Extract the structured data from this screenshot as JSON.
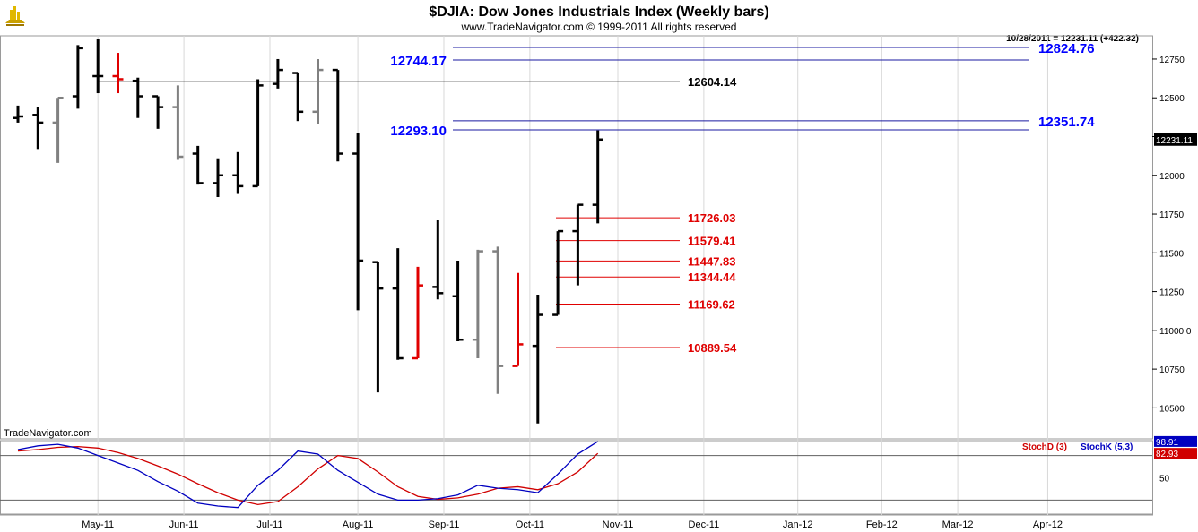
{
  "header": {
    "title": "$DJIA:  Dow Jones Industrials Index  (Weekly bars)",
    "copyright": "www.TradeNavigator.com © 1999-2011 All rights reserved",
    "last_info": "10/28/2011 = 12231.11 (+422.32)",
    "watermark": "TradeNavigator.com"
  },
  "colors": {
    "up_bar": "#000000",
    "gray_bar": "#808080",
    "red_bar": "#e00000",
    "blue_level": "#0000ff",
    "blue_line": "#1a1aa0",
    "red_level": "#e00000",
    "black_level": "#000000",
    "stoch_d": "#d00000",
    "stoch_k": "#0000c0"
  },
  "chart_data": [
    {
      "type": "ohlc",
      "ylim": [
        10300,
        12900
      ],
      "yticks": [
        10500,
        10750,
        11000,
        11250,
        11500,
        11750,
        12000,
        12250,
        12500,
        12750
      ],
      "ytick_labels": [
        "10500",
        "10750",
        "11000.0",
        "11250",
        "11500",
        "11750",
        "12000",
        "12250",
        "12500",
        "12750"
      ],
      "current_price_label": "12231.11",
      "x_labels": [
        "May-11",
        "Jun-11",
        "Jul-11",
        "Aug-11",
        "Sep-11",
        "Oct-11",
        "Nov-11",
        "Dec-11",
        "Jan-12",
        "Feb-12",
        "Mar-12",
        "Apr-12"
      ],
      "x_label_weeks": [
        4,
        8.3,
        12.6,
        17,
        21.3,
        25.6,
        30,
        34.3,
        39,
        43.2,
        47,
        51.5
      ],
      "bars": [
        {
          "w": 0,
          "o": 12370,
          "h": 12450,
          "l": 12340,
          "c": 12380,
          "color": "black"
        },
        {
          "w": 1,
          "o": 12390,
          "h": 12440,
          "l": 12170,
          "c": 12340,
          "color": "black"
        },
        {
          "w": 2,
          "o": 12340,
          "h": 12500,
          "l": 12080,
          "c": 12500,
          "color": "gray"
        },
        {
          "w": 3,
          "o": 12510,
          "h": 12840,
          "l": 12430,
          "c": 12820,
          "color": "black"
        },
        {
          "w": 4,
          "o": 12640,
          "h": 12880,
          "l": 12530,
          "c": 12640,
          "color": "black"
        },
        {
          "w": 5,
          "o": 12640,
          "h": 12790,
          "l": 12530,
          "c": 12620,
          "color": "red"
        },
        {
          "w": 6,
          "o": 12610,
          "h": 12630,
          "l": 12370,
          "c": 12510,
          "color": "black"
        },
        {
          "w": 7,
          "o": 12510,
          "h": 12510,
          "l": 12300,
          "c": 12440,
          "color": "black"
        },
        {
          "w": 8,
          "o": 12440,
          "h": 12580,
          "l": 12100,
          "c": 12120,
          "color": "gray"
        },
        {
          "w": 9,
          "o": 12140,
          "h": 12190,
          "l": 11940,
          "c": 11950,
          "color": "black"
        },
        {
          "w": 10,
          "o": 11950,
          "h": 12110,
          "l": 11860,
          "c": 12000,
          "color": "black"
        },
        {
          "w": 11,
          "o": 12000,
          "h": 12150,
          "l": 11880,
          "c": 11930,
          "color": "black"
        },
        {
          "w": 12,
          "o": 11930,
          "h": 12620,
          "l": 11930,
          "c": 12580,
          "color": "black"
        },
        {
          "w": 13,
          "o": 12590,
          "h": 12750,
          "l": 12560,
          "c": 12680,
          "color": "black"
        },
        {
          "w": 14,
          "o": 12660,
          "h": 12660,
          "l": 12350,
          "c": 12410,
          "color": "black"
        },
        {
          "w": 15,
          "o": 12410,
          "h": 12750,
          "l": 12330,
          "c": 12680,
          "color": "gray"
        },
        {
          "w": 16,
          "o": 12680,
          "h": 12680,
          "l": 12090,
          "c": 12140,
          "color": "black"
        },
        {
          "w": 17,
          "o": 12140,
          "h": 12270,
          "l": 11130,
          "c": 11450,
          "color": "black"
        },
        {
          "w": 18,
          "o": 11440,
          "h": 11440,
          "l": 10600,
          "c": 11270,
          "color": "black"
        },
        {
          "w": 19,
          "o": 11270,
          "h": 11530,
          "l": 10810,
          "c": 10820,
          "color": "black"
        },
        {
          "w": 20,
          "o": 10820,
          "h": 11410,
          "l": 10820,
          "c": 11290,
          "color": "red"
        },
        {
          "w": 21,
          "o": 11280,
          "h": 11710,
          "l": 11200,
          "c": 11240,
          "color": "black"
        },
        {
          "w": 22,
          "o": 11220,
          "h": 11450,
          "l": 10930,
          "c": 10940,
          "color": "black"
        },
        {
          "w": 23,
          "o": 10940,
          "h": 11520,
          "l": 10820,
          "c": 11510,
          "color": "gray"
        },
        {
          "w": 24,
          "o": 11510,
          "h": 11540,
          "l": 10590,
          "c": 10770,
          "color": "gray"
        },
        {
          "w": 25,
          "o": 10770,
          "h": 11370,
          "l": 10770,
          "c": 10910,
          "color": "red"
        },
        {
          "w": 26,
          "o": 10900,
          "h": 11230,
          "l": 10400,
          "c": 11100,
          "color": "black"
        },
        {
          "w": 27,
          "o": 11100,
          "h": 11640,
          "l": 11100,
          "c": 11640,
          "color": "black"
        },
        {
          "w": 28,
          "o": 11640,
          "h": 11810,
          "l": 11290,
          "c": 11810,
          "color": "black"
        },
        {
          "w": 29,
          "o": 11810,
          "h": 12290,
          "l": 11690,
          "c": 12231.11,
          "color": "black"
        }
      ],
      "levels_blue": [
        {
          "value": 12744.17,
          "label": "12744.17",
          "label_side": "left"
        },
        {
          "value": 12824.76,
          "label": "12824.76",
          "label_side": "right"
        },
        {
          "value": 12293.1,
          "label": "12293.10",
          "label_side": "left"
        },
        {
          "value": 12351.74,
          "label": "12351.74",
          "label_side": "right"
        }
      ],
      "level_black": {
        "value": 12604.14,
        "label": "12604.14"
      },
      "levels_red": [
        {
          "value": 11726.03,
          "label": "11726.03"
        },
        {
          "value": 11579.41,
          "label": "11579.41"
        },
        {
          "value": 11447.83,
          "label": "11447.83"
        },
        {
          "value": 11344.44,
          "label": "11344.44"
        },
        {
          "value": 11169.62,
          "label": "11169.62"
        },
        {
          "value": 10889.54,
          "label": "10889.54"
        }
      ]
    },
    {
      "type": "line",
      "ylim": [
        0,
        100
      ],
      "yticks": [
        50
      ],
      "reference_lines": [
        80,
        20
      ],
      "series": [
        {
          "name": "StochD (3)",
          "color": "#d00000",
          "last_label": "82.93",
          "values": [
            86,
            88,
            91,
            92,
            90,
            84,
            76,
            66,
            55,
            42,
            30,
            20,
            14,
            18,
            38,
            62,
            80,
            76,
            58,
            38,
            25,
            21,
            23,
            28,
            36,
            38,
            34,
            42,
            58,
            82.93
          ]
        },
        {
          "name": "StochK (5,3)",
          "color": "#0000c0",
          "last_label": "98.91",
          "values": [
            88,
            93,
            95,
            90,
            80,
            70,
            60,
            45,
            32,
            16,
            12,
            10,
            40,
            60,
            86,
            82,
            60,
            44,
            28,
            20,
            20,
            22,
            27,
            40,
            36,
            34,
            30,
            55,
            82,
            98.91
          ]
        }
      ]
    }
  ]
}
